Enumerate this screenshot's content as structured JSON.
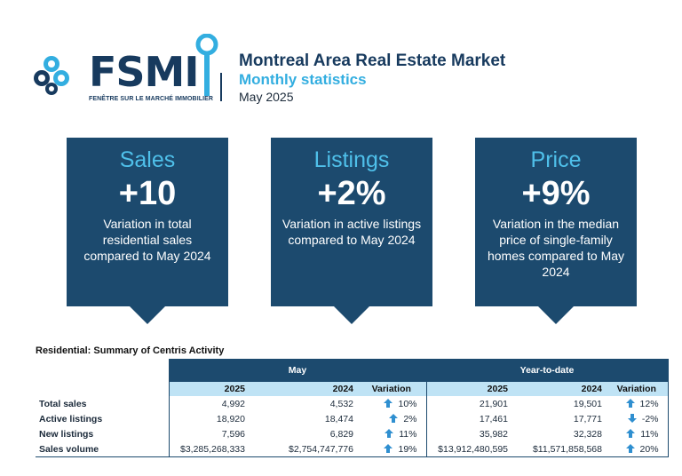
{
  "header": {
    "logo_text": "FSMI",
    "logo_tagline": "FENÊTRE SUR LE MARCHÉ IMMOBILIER",
    "title": "Montreal Area Real Estate Market",
    "subtitle": "Monthly statistics",
    "date": "May 2025"
  },
  "cards": [
    {
      "title": "Sales",
      "value": "+10",
      "description": "Variation in total residential sales compared to May 2024"
    },
    {
      "title": "Listings",
      "value": "+2%",
      "description": "Variation in active listings compared to May 2024"
    },
    {
      "title": "Price",
      "value": "+9%",
      "description": "Variation in the median price of single-family homes compared to May 2024"
    }
  ],
  "table": {
    "title": "Residential: Summary of Centris Activity",
    "group_headers": {
      "month": "May",
      "ytd": "Year-to-date"
    },
    "columns": [
      "2025",
      "2024",
      "Variation",
      "2025",
      "2024",
      "Variation"
    ],
    "rows": [
      {
        "label": "Total sales",
        "m2025": "4,992",
        "m2024": "4,532",
        "mvar": "10%",
        "mdir": "up",
        "y2025": "21,901",
        "y2024": "19,501",
        "yvar": "12%",
        "ydir": "up"
      },
      {
        "label": "Active listings",
        "m2025": "18,920",
        "m2024": "18,474",
        "mvar": "2%",
        "mdir": "up",
        "y2025": "17,461",
        "y2024": "17,771",
        "yvar": "-2%",
        "ydir": "down"
      },
      {
        "label": "New listings",
        "m2025": "7,596",
        "m2024": "6,829",
        "mvar": "11%",
        "mdir": "up",
        "y2025": "35,982",
        "y2024": "32,328",
        "yvar": "11%",
        "ydir": "up"
      },
      {
        "label": "Sales volume",
        "m2025": "$3,285,268,333",
        "m2024": "$2,754,747,776",
        "mvar": "19%",
        "mdir": "up",
        "y2025": "$13,912,480,595",
        "y2024": "$11,571,858,568",
        "yvar": "20%",
        "ydir": "up"
      }
    ]
  },
  "colors": {
    "navy": "#1c4a6e",
    "accent": "#33aee0",
    "light_blue": "#bfe3f5",
    "arrow": "#2f8fd0"
  },
  "icons": {
    "logo": "fsmi-logo-icon",
    "arrow_up": "arrow-up-icon",
    "arrow_down": "arrow-down-icon"
  }
}
